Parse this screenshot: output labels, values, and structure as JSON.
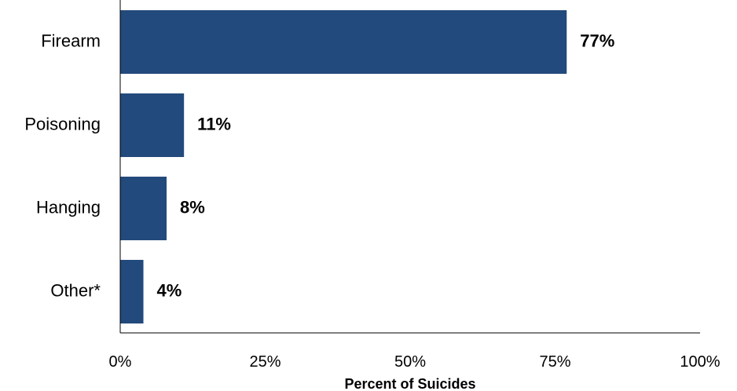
{
  "chart_data": {
    "type": "bar",
    "orientation": "horizontal",
    "categories": [
      "Firearm",
      "Poisoning",
      "Hanging",
      "Other*"
    ],
    "values": [
      77,
      11,
      8,
      4
    ],
    "data_labels": [
      "77%",
      "11%",
      "8%",
      "4%"
    ],
    "xlabel": "Percent of Suicides",
    "xlim": [
      0,
      100
    ],
    "xticks": [
      0,
      25,
      50,
      75,
      100
    ],
    "xtick_labels": [
      "0%",
      "25%",
      "50%",
      "75%",
      "100%"
    ],
    "grid": false,
    "bar_color": "#234a7c"
  }
}
